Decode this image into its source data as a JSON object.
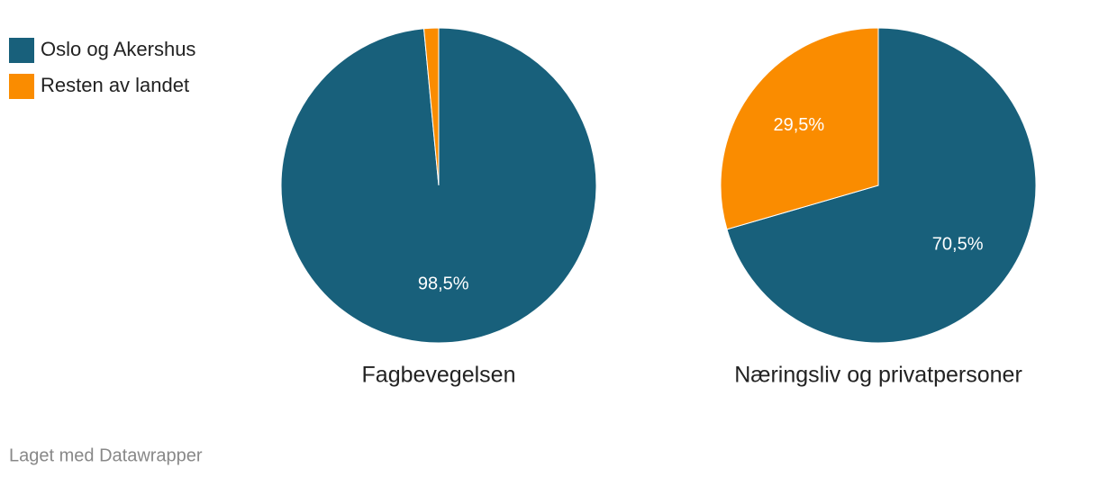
{
  "legend": [
    {
      "name": "Oslo og Akershus",
      "color": "#18607b"
    },
    {
      "name": "Resten av landet",
      "color": "#fa8c00"
    }
  ],
  "chart_data": [
    {
      "type": "pie",
      "title": "Fagbevegelsen",
      "values": [
        98.5,
        1.5
      ],
      "value_labels": [
        "98,5%",
        null
      ]
    },
    {
      "type": "pie",
      "title": "Næringsliv og privatpersoner",
      "values": [
        70.5,
        29.5
      ],
      "value_labels": [
        "70,5%",
        "29,5%"
      ]
    }
  ],
  "footer": "Laget med Datawrapper"
}
